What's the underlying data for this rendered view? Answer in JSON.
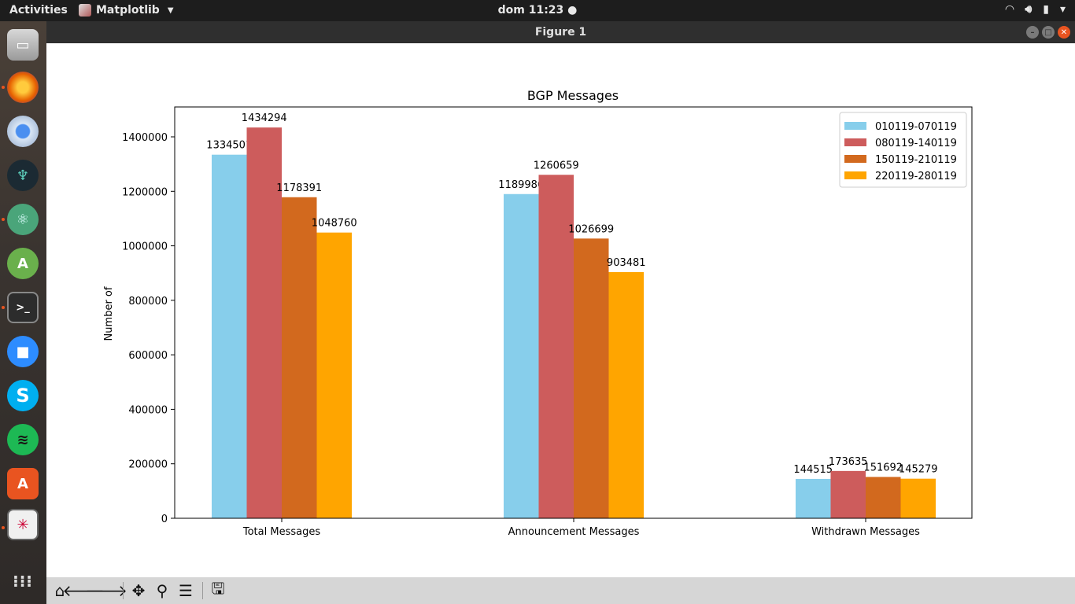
{
  "topbar": {
    "activities": "Activities",
    "app_name": "Matplotlib",
    "clock": "dom 11:23",
    "tray_icons": [
      "wifi-icon",
      "volume-icon",
      "battery-icon",
      "chevron-down-icon"
    ]
  },
  "dock": {
    "items": [
      "files-icon",
      "firefox-icon",
      "chromium-icon",
      "gitkraken-icon",
      "atom-icon",
      "android-studio-icon",
      "terminal-icon",
      "zoom-icon",
      "skype-icon",
      "spotify-icon",
      "software-center-icon",
      "matplotlib-icon",
      "app-grid-icon"
    ]
  },
  "window": {
    "title": "Figure 1"
  },
  "chart_data": {
    "type": "bar",
    "title": "BGP Messages",
    "xlabel": "",
    "ylabel": "Number of",
    "categories": [
      "Total Messages",
      "Announcement Messages",
      "Withdrawn Messages"
    ],
    "ylim": [
      0,
      1500000
    ],
    "yticks": [
      0,
      200000,
      400000,
      600000,
      800000,
      1000000,
      1200000,
      1400000
    ],
    "legend_position": "top-right",
    "series": [
      {
        "name": "010119-070119",
        "color": "#87ceeb",
        "values": [
          1334501,
          1189986,
          144515
        ]
      },
      {
        "name": "080119-140119",
        "color": "#cd5c5c",
        "values": [
          1434294,
          1260659,
          173635
        ]
      },
      {
        "name": "150119-210119",
        "color": "#d2691e",
        "values": [
          1178391,
          1026699,
          151692
        ]
      },
      {
        "name": "220119-280119",
        "color": "#ffa500",
        "values": [
          1048760,
          903481,
          145279
        ]
      }
    ]
  },
  "toolbar": {
    "buttons": [
      "home-icon",
      "back-icon",
      "forward-icon",
      "pan-icon",
      "zoom-icon",
      "configure-subplots-icon",
      "save-icon"
    ]
  }
}
